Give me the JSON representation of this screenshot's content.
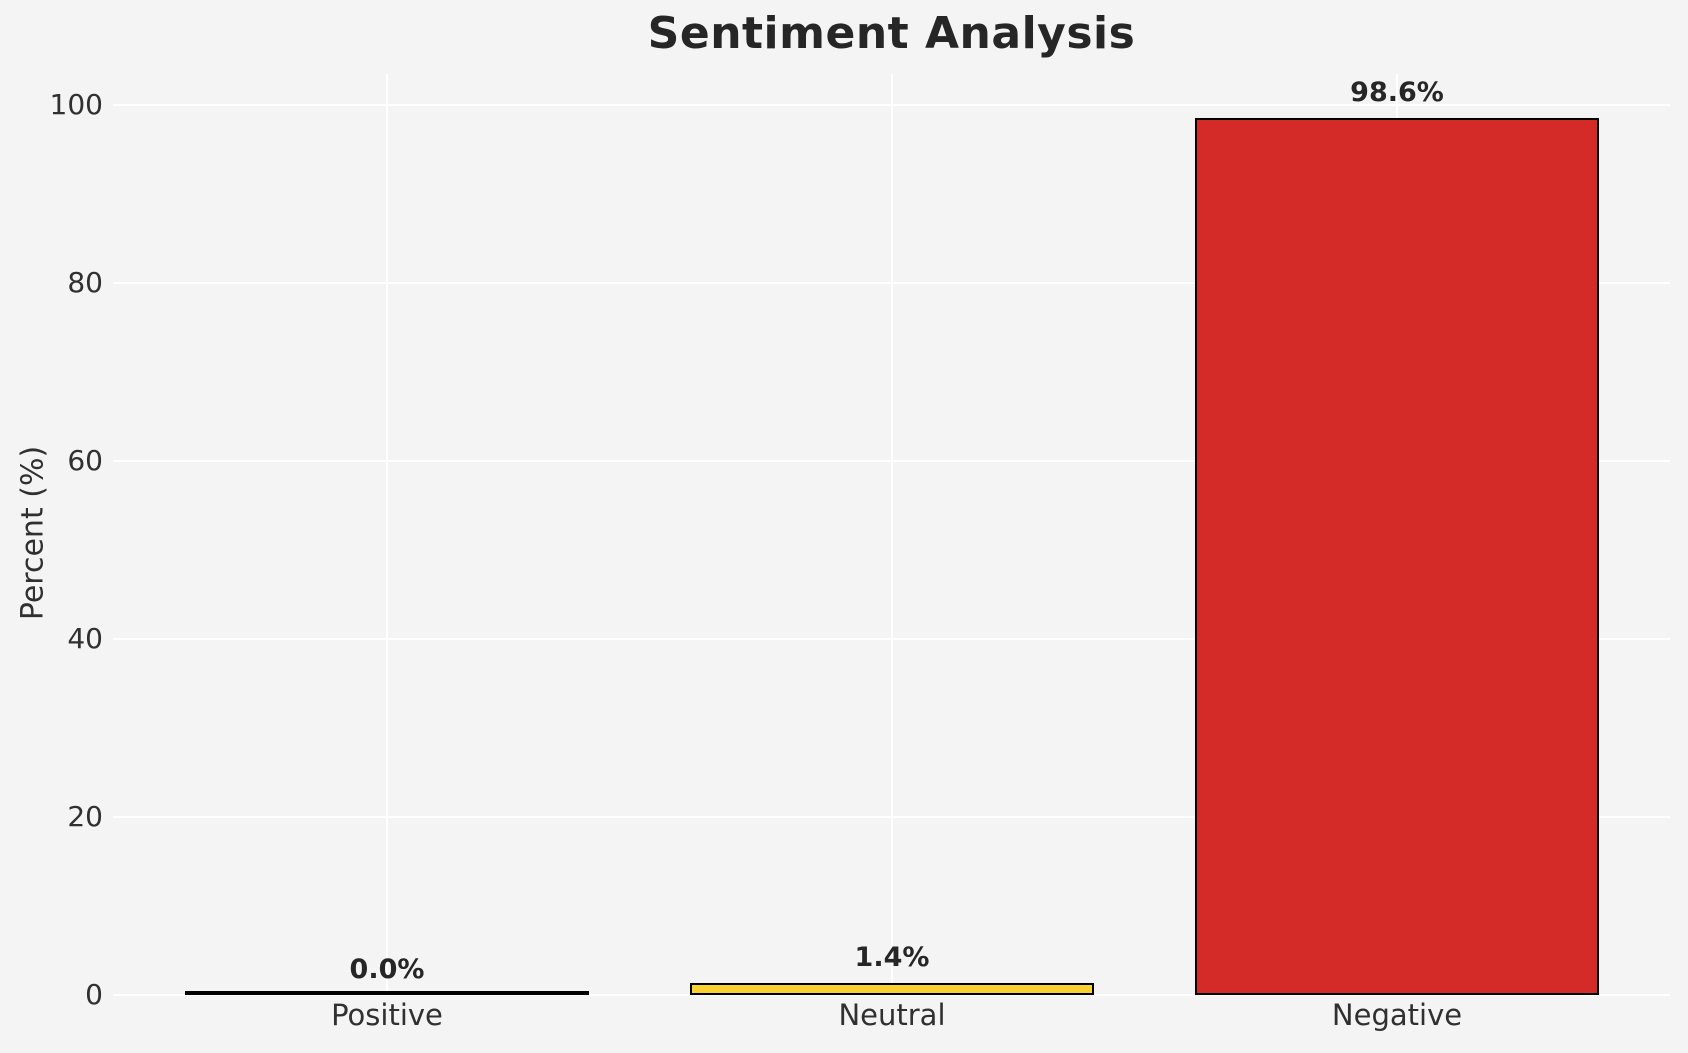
{
  "chart_data": {
    "type": "bar",
    "title": "Sentiment Analysis",
    "ylabel": "Percent (%)",
    "xlabel": "",
    "categories": [
      "Positive",
      "Neutral",
      "Negative"
    ],
    "values": [
      0.0,
      1.4,
      98.6
    ],
    "bar_labels": [
      "0.0%",
      "1.4%",
      "98.6%"
    ],
    "yticks": [
      0,
      20,
      40,
      60,
      80,
      100
    ],
    "ylim": [
      0,
      103.5
    ],
    "grid": true,
    "legend_position": "none",
    "colors": {
      "background": "#f4f4f5",
      "gridline": "#ffffff",
      "title_text": "#262626",
      "tick_text": "#303030",
      "bar_fills": [
        "transparent",
        "#fbd12f",
        "#d42b29"
      ],
      "bar_edge": "#000000"
    }
  }
}
